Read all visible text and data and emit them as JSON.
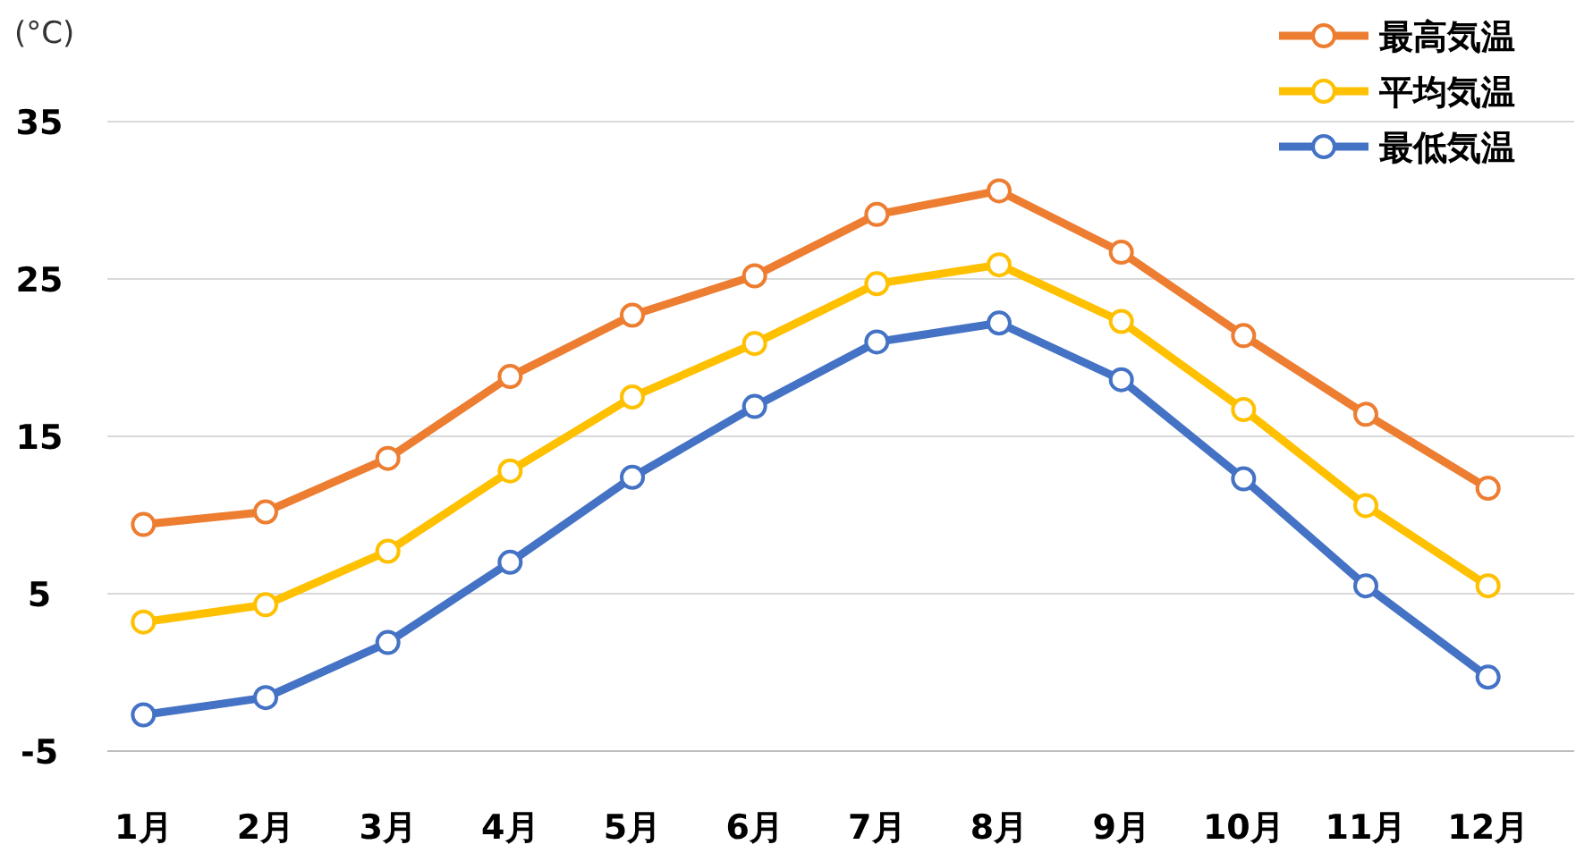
{
  "chart_data": {
    "type": "line",
    "ylabel": "(°C)",
    "categories": [
      "1月",
      "2月",
      "3月",
      "4月",
      "5月",
      "6月",
      "7月",
      "8月",
      "9月",
      "10月",
      "11月",
      "12月"
    ],
    "series": [
      {
        "name": "最高気温",
        "color": "#ed7d31",
        "values": [
          9.4,
          10.2,
          13.6,
          18.8,
          22.7,
          25.2,
          29.1,
          30.6,
          26.7,
          21.4,
          16.4,
          11.7
        ]
      },
      {
        "name": "平均気温",
        "color": "#ffc000",
        "values": [
          3.2,
          4.3,
          7.7,
          12.8,
          17.5,
          20.9,
          24.7,
          25.9,
          22.3,
          16.7,
          10.6,
          5.5
        ]
      },
      {
        "name": "最低気温",
        "color": "#4472c4",
        "values": [
          -2.7,
          -1.6,
          1.9,
          7.0,
          12.4,
          16.9,
          21.0,
          22.2,
          18.6,
          12.3,
          5.5,
          -0.3
        ]
      }
    ],
    "ylim": [
      -5,
      35
    ],
    "yticks": [
      -5,
      5,
      15,
      25,
      35
    ],
    "grid": "y",
    "legend": "top right",
    "marker": "circle",
    "line_style": "solid"
  }
}
